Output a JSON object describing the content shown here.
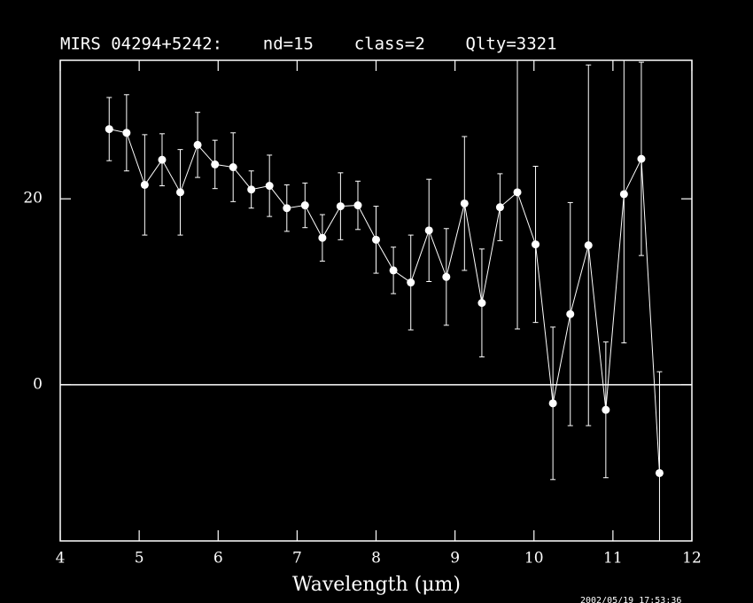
{
  "chart_data": {
    "type": "errorbar-line",
    "title": "MIRS 04294+5242:    nd=15    class=2    Qlty=3321",
    "x_label": "Wavelength (μm)",
    "timestamp": "2002/05/19 17:53:36",
    "x": [
      4.62,
      4.84,
      5.07,
      5.29,
      5.52,
      5.74,
      5.96,
      6.19,
      6.42,
      6.65,
      6.87,
      7.1,
      7.32,
      7.55,
      7.77,
      8.0,
      8.22,
      8.44,
      8.67,
      8.89,
      9.12,
      9.34,
      9.57,
      9.79,
      10.02,
      10.24,
      10.46,
      10.69,
      10.91,
      11.14,
      11.36,
      11.59
    ],
    "values": [
      27.5,
      27.1,
      21.5,
      24.2,
      20.7,
      25.8,
      23.7,
      23.4,
      21.0,
      21.4,
      19.0,
      19.3,
      15.8,
      19.2,
      19.3,
      15.6,
      12.3,
      11.0,
      16.6,
      11.6,
      19.5,
      8.8,
      19.1,
      20.7,
      15.1,
      -2.0,
      7.6,
      15.0,
      -2.7,
      20.5,
      24.3,
      -9.5
    ],
    "errors": [
      3.4,
      4.1,
      5.4,
      2.8,
      4.6,
      3.5,
      2.6,
      3.7,
      2.0,
      3.3,
      2.5,
      2.4,
      2.5,
      3.6,
      2.6,
      3.6,
      2.5,
      5.1,
      5.5,
      5.2,
      7.2,
      5.8,
      3.6,
      14.7,
      8.4,
      8.2,
      12.0,
      19.4,
      7.3,
      16.0,
      10.4,
      10.9
    ],
    "color": "#ffffff",
    "xlim": [
      4,
      12
    ],
    "ylim": [
      -16.8,
      34.9
    ],
    "xticks": [
      4,
      5,
      6,
      7,
      8,
      9,
      10,
      11,
      12
    ],
    "yticks": [
      0,
      20
    ],
    "hline": 0
  }
}
